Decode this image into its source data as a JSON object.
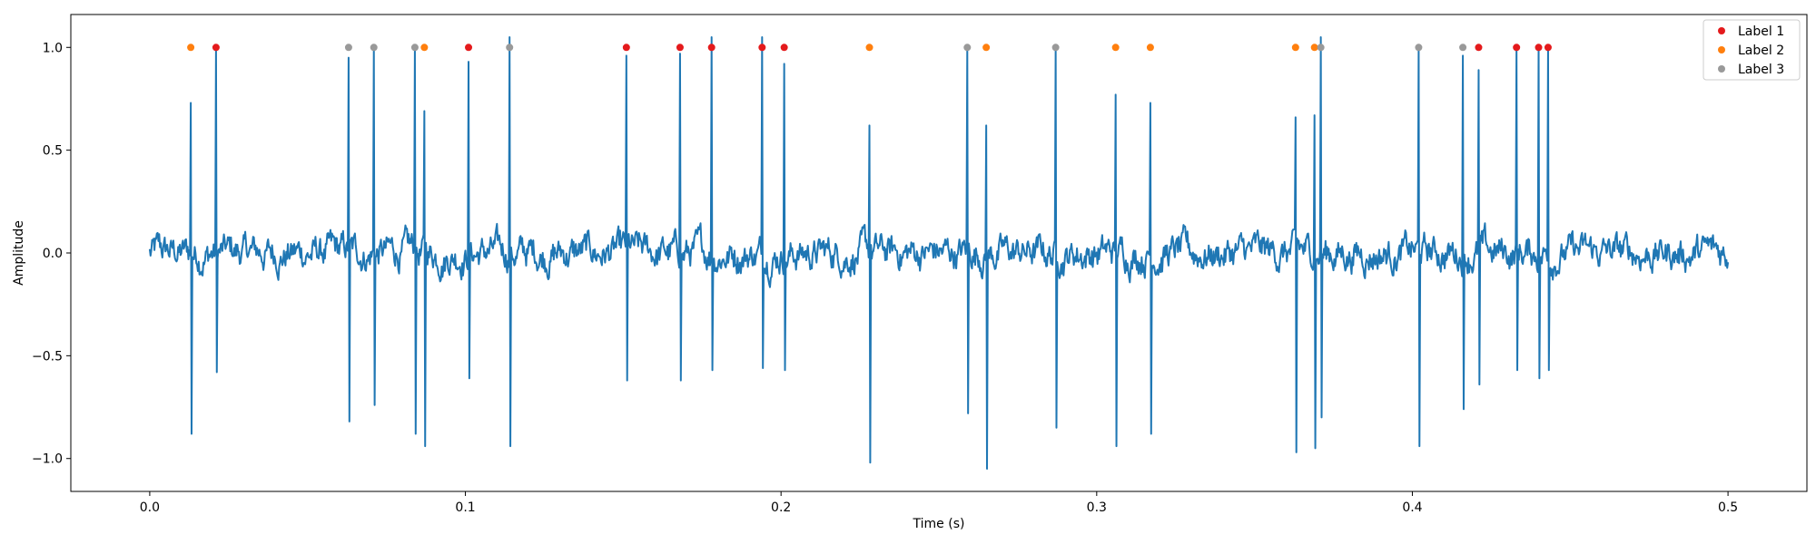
{
  "chart_data": {
    "type": "line",
    "title": "",
    "xlabel": "Time (s)",
    "ylabel": "Amplitude",
    "xlim": [
      -0.025,
      0.525
    ],
    "ylim": [
      -1.16,
      1.16
    ],
    "xticks": [
      0.0,
      0.1,
      0.2,
      0.3,
      0.4,
      0.5
    ],
    "xtick_labels": [
      "0.0",
      "0.1",
      "0.2",
      "0.3",
      "0.4",
      "0.5"
    ],
    "yticks": [
      -1.0,
      -0.5,
      0.0,
      0.5,
      1.0
    ],
    "ytick_labels": [
      "−1.0",
      "−0.5",
      "0.0",
      "0.5",
      "1.0"
    ],
    "grid": false,
    "legend_position": "top-right",
    "signal": {
      "color": "#1f77b4",
      "x_start": 0.0,
      "x_end": 0.5,
      "baseline_noise_amplitude": 0.1
    },
    "spikes": [
      {
        "t": 0.013,
        "up": 0.73,
        "down": -0.88
      },
      {
        "t": 0.021,
        "up": 1.0,
        "down": -0.58
      },
      {
        "t": 0.063,
        "up": 0.95,
        "down": -0.82
      },
      {
        "t": 0.071,
        "up": 1.0,
        "down": -0.74
      },
      {
        "t": 0.084,
        "up": 1.0,
        "down": -0.88
      },
      {
        "t": 0.087,
        "up": 0.69,
        "down": -0.94
      },
      {
        "t": 0.101,
        "up": 0.93,
        "down": -0.61
      },
      {
        "t": 0.114,
        "up": 1.05,
        "down": -0.94
      },
      {
        "t": 0.151,
        "up": 0.96,
        "down": -0.62
      },
      {
        "t": 0.168,
        "up": 0.97,
        "down": -0.62
      },
      {
        "t": 0.178,
        "up": 1.05,
        "down": -0.57
      },
      {
        "t": 0.194,
        "up": 1.05,
        "down": -0.56
      },
      {
        "t": 0.201,
        "up": 0.92,
        "down": -0.57
      },
      {
        "t": 0.228,
        "up": 0.62,
        "down": -1.02
      },
      {
        "t": 0.259,
        "up": 1.0,
        "down": -0.78
      },
      {
        "t": 0.265,
        "up": 0.62,
        "down": -1.05
      },
      {
        "t": 0.287,
        "up": 1.0,
        "down": -0.85
      },
      {
        "t": 0.306,
        "up": 0.77,
        "down": -0.94
      },
      {
        "t": 0.317,
        "up": 0.73,
        "down": -0.88
      },
      {
        "t": 0.363,
        "up": 0.66,
        "down": -0.97
      },
      {
        "t": 0.369,
        "up": 0.67,
        "down": -0.95
      },
      {
        "t": 0.371,
        "up": 1.05,
        "down": -0.8
      },
      {
        "t": 0.402,
        "up": 1.0,
        "down": -0.94
      },
      {
        "t": 0.416,
        "up": 0.96,
        "down": -0.76
      },
      {
        "t": 0.421,
        "up": 0.89,
        "down": -0.64
      },
      {
        "t": 0.433,
        "up": 1.0,
        "down": -0.57
      },
      {
        "t": 0.44,
        "up": 1.0,
        "down": -0.61
      },
      {
        "t": 0.443,
        "up": 1.0,
        "down": -0.57
      }
    ],
    "series": [
      {
        "name": "Label 1",
        "type": "scatter",
        "color": "#e41a1c",
        "x": [
          0.021,
          0.101,
          0.151,
          0.168,
          0.178,
          0.194,
          0.201,
          0.421,
          0.433,
          0.44,
          0.443
        ],
        "y": [
          1,
          1,
          1,
          1,
          1,
          1,
          1,
          1,
          1,
          1,
          1
        ]
      },
      {
        "name": "Label 2",
        "type": "scatter",
        "color": "#ff7f0e",
        "x": [
          0.013,
          0.087,
          0.228,
          0.265,
          0.306,
          0.317,
          0.363,
          0.369
        ],
        "y": [
          1,
          1,
          1,
          1,
          1,
          1,
          1,
          1
        ]
      },
      {
        "name": "Label 3",
        "type": "scatter",
        "color": "#999999",
        "x": [
          0.063,
          0.071,
          0.084,
          0.114,
          0.259,
          0.287,
          0.371,
          0.402,
          0.416
        ],
        "y": [
          1,
          1,
          1,
          1,
          1,
          1,
          1,
          1,
          1
        ]
      }
    ]
  }
}
